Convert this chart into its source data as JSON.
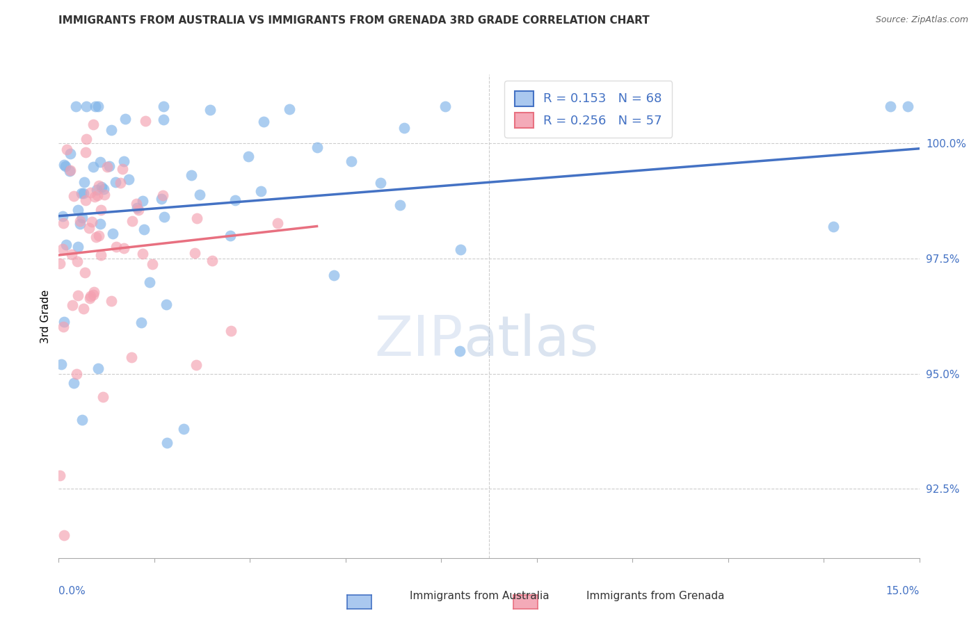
{
  "title": "IMMIGRANTS FROM AUSTRALIA VS IMMIGRANTS FROM GRENADA 3RD GRADE CORRELATION CHART",
  "source": "Source: ZipAtlas.com",
  "ylabel": "3rd Grade",
  "yticks": [
    92.5,
    95.0,
    97.5,
    100.0
  ],
  "ytick_labels": [
    "92.5%",
    "95.0%",
    "97.5%",
    "100.0%"
  ],
  "xlim": [
    0.0,
    15.0
  ],
  "ylim": [
    91.0,
    101.5
  ],
  "australia_color": "#7fb3e8",
  "grenada_color": "#f4a0b0",
  "australia_line_color": "#4472c4",
  "grenada_line_color": "#e87080",
  "australia_label": "Immigrants from Australia",
  "grenada_label": "Immigrants from Grenada",
  "australia_R": 0.153,
  "australia_N": 68,
  "grenada_R": 0.256,
  "grenada_N": 57,
  "watermark_zip": "ZIP",
  "watermark_atlas": "atlas",
  "background_color": "#ffffff"
}
